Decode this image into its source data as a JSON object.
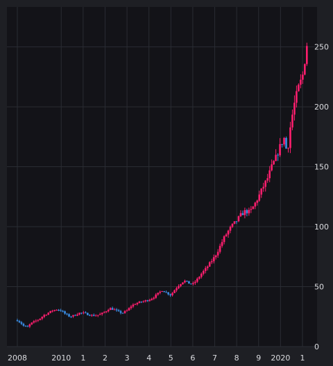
{
  "colors": {
    "page_background": "#1e1f24",
    "plot_background": "#131318",
    "grid": "#2a2c33",
    "axis_text": "#dcdde1",
    "up_candle": "#ff1e6e",
    "down_candle": "#3a8ee6"
  },
  "chart_data": {
    "type": "candlestick",
    "title": "",
    "xlabel": "",
    "ylabel": "",
    "ylim": [
      0,
      270
    ],
    "y_axis_side": "right",
    "yticks": [
      0,
      50,
      100,
      150,
      200,
      250
    ],
    "ytick_labels": [
      "0",
      "50",
      "100",
      "150",
      "200",
      "250"
    ],
    "xlim": [
      2008.0,
      2021.25
    ],
    "xticks": [
      2008,
      2010,
      2011,
      2012,
      2013,
      2014,
      2015,
      2016,
      2017,
      2018,
      2019,
      2020,
      2021
    ],
    "xtick_labels": [
      "2008",
      "2010",
      "1",
      "2",
      "3",
      "4",
      "5",
      "6",
      "7",
      "8",
      "9",
      "2020",
      "1"
    ],
    "grid": true,
    "legend": "none",
    "close_series": {
      "name": "",
      "points": [
        [
          2008.0,
          22
        ],
        [
          2008.15,
          20
        ],
        [
          2008.3,
          17
        ],
        [
          2008.45,
          16
        ],
        [
          2008.6,
          19
        ],
        [
          2008.8,
          21
        ],
        [
          2009.0,
          23
        ],
        [
          2009.2,
          26
        ],
        [
          2009.4,
          28
        ],
        [
          2009.6,
          30
        ],
        [
          2009.8,
          31
        ],
        [
          2010.0,
          30
        ],
        [
          2010.2,
          27
        ],
        [
          2010.4,
          25
        ],
        [
          2010.6,
          26
        ],
        [
          2010.8,
          28
        ],
        [
          2011.0,
          28
        ],
        [
          2011.2,
          27
        ],
        [
          2011.4,
          26
        ],
        [
          2011.6,
          26
        ],
        [
          2011.8,
          27
        ],
        [
          2012.0,
          29
        ],
        [
          2012.2,
          32
        ],
        [
          2012.4,
          31
        ],
        [
          2012.6,
          29
        ],
        [
          2012.8,
          28
        ],
        [
          2013.0,
          30
        ],
        [
          2013.2,
          34
        ],
        [
          2013.4,
          36
        ],
        [
          2013.6,
          37
        ],
        [
          2013.8,
          38
        ],
        [
          2014.0,
          39
        ],
        [
          2014.2,
          41
        ],
        [
          2014.4,
          44
        ],
        [
          2014.6,
          47
        ],
        [
          2014.8,
          45
        ],
        [
          2015.0,
          43
        ],
        [
          2015.2,
          48
        ],
        [
          2015.4,
          52
        ],
        [
          2015.6,
          55
        ],
        [
          2015.8,
          53
        ],
        [
          2016.0,
          52
        ],
        [
          2016.2,
          56
        ],
        [
          2016.4,
          61
        ],
        [
          2016.6,
          65
        ],
        [
          2016.8,
          70
        ],
        [
          2017.0,
          75
        ],
        [
          2017.2,
          82
        ],
        [
          2017.4,
          90
        ],
        [
          2017.6,
          96
        ],
        [
          2017.8,
          101
        ],
        [
          2018.0,
          105
        ],
        [
          2018.2,
          110
        ],
        [
          2018.4,
          113
        ],
        [
          2018.6,
          112
        ],
        [
          2018.8,
          118
        ],
        [
          2019.0,
          125
        ],
        [
          2019.2,
          133
        ],
        [
          2019.4,
          140
        ],
        [
          2019.6,
          150
        ],
        [
          2019.8,
          158
        ],
        [
          2020.0,
          168
        ],
        [
          2020.2,
          175
        ],
        [
          2020.3,
          158
        ],
        [
          2020.4,
          178
        ],
        [
          2020.6,
          200
        ],
        [
          2020.8,
          215
        ],
        [
          2021.0,
          225
        ],
        [
          2021.1,
          238
        ],
        [
          2021.2,
          252
        ]
      ]
    }
  }
}
